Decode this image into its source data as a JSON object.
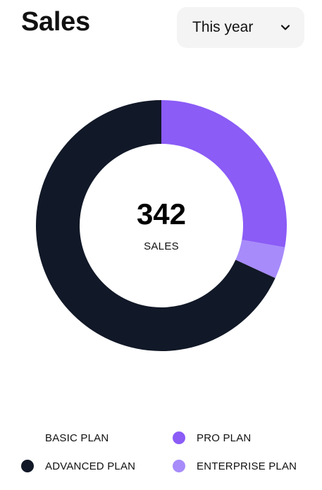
{
  "header": {
    "title": "Sales",
    "period_select": {
      "selected": "This year",
      "icon": "chevron-down-icon"
    }
  },
  "chart_data": {
    "type": "donut",
    "total": 342,
    "center_value": "342",
    "center_label": "SALES",
    "series": [
      {
        "name": "BASIC PLAN",
        "value": 0,
        "color": "#ffffff"
      },
      {
        "name": "PRO PLAN",
        "value": 95,
        "color": "#8b5cf6"
      },
      {
        "name": "ENTERPRISE PLAN",
        "value": 14,
        "color": "#a78bfa"
      },
      {
        "name": "ADVANCED PLAN",
        "value": 233,
        "color": "#111827"
      }
    ]
  },
  "legend": [
    {
      "label": "BASIC PLAN",
      "color": "#ffffff"
    },
    {
      "label": "PRO PLAN",
      "color": "#8b5cf6"
    },
    {
      "label": "ADVANCED PLAN",
      "color": "#111827"
    },
    {
      "label": "ENTERPRISE PLAN",
      "color": "#a78bfa"
    }
  ]
}
